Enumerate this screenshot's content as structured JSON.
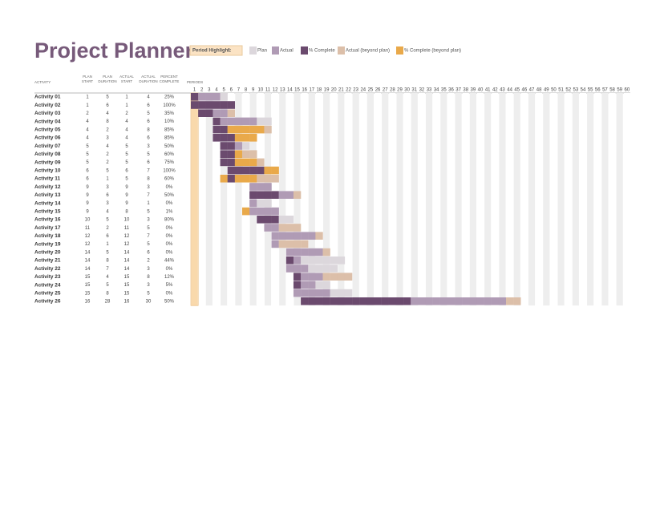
{
  "header": {
    "title": "Project Planner"
  },
  "legend": {
    "period_highlight_label": "Period Highlight:",
    "period_highlight": 1,
    "items": [
      "Plan",
      "Actual",
      "% Complete",
      "Actual (beyond plan)",
      "% Complete (beyond plan)"
    ]
  },
  "table": {
    "columns": [
      "ACTIVITY",
      "PLAN START",
      "PLAN DURATION",
      "ACTUAL START",
      "ACTUAL DURATION",
      "PERCENT COMPLETE"
    ],
    "periods_label": "PERIODS",
    "periods": [
      1,
      2,
      3,
      4,
      5,
      6,
      7,
      8,
      9,
      10,
      11,
      12,
      13,
      14,
      15,
      16,
      17,
      18,
      19,
      20,
      21,
      22,
      23,
      24,
      25,
      26,
      27,
      28,
      29,
      30,
      31,
      32,
      33,
      34,
      35,
      36,
      37,
      38,
      39,
      40,
      41,
      42,
      43,
      44,
      45,
      46,
      47,
      48,
      49,
      50,
      51,
      52,
      53,
      54,
      55,
      56,
      57,
      58,
      59,
      60
    ],
    "rows": [
      [
        "Activity 01",
        1,
        5,
        1,
        4,
        "25%"
      ],
      [
        "Activity 02",
        1,
        6,
        1,
        6,
        "100%"
      ],
      [
        "Activity 03",
        2,
        4,
        2,
        5,
        "35%"
      ],
      [
        "Activity 04",
        4,
        8,
        4,
        6,
        "10%"
      ],
      [
        "Activity 05",
        4,
        2,
        4,
        8,
        "85%"
      ],
      [
        "Activity 06",
        4,
        3,
        4,
        6,
        "85%"
      ],
      [
        "Activity 07",
        5,
        4,
        5,
        3,
        "50%"
      ],
      [
        "Activity 08",
        5,
        2,
        5,
        5,
        "60%"
      ],
      [
        "Activity 09",
        5,
        2,
        5,
        6,
        "75%"
      ],
      [
        "Activity 10",
        6,
        5,
        6,
        7,
        "100%"
      ],
      [
        "Activity 11",
        6,
        1,
        5,
        8,
        "60%"
      ],
      [
        "Activity 12",
        9,
        3,
        9,
        3,
        "0%"
      ],
      [
        "Activity 13",
        9,
        6,
        9,
        7,
        "50%"
      ],
      [
        "Activity 14",
        9,
        3,
        9,
        1,
        "0%"
      ],
      [
        "Activity 15",
        9,
        4,
        8,
        5,
        "1%"
      ],
      [
        "Activity 16",
        10,
        5,
        10,
        3,
        "80%"
      ],
      [
        "Activity 17",
        11,
        2,
        11,
        5,
        "0%"
      ],
      [
        "Activity 18",
        12,
        6,
        12,
        7,
        "0%"
      ],
      [
        "Activity 19",
        12,
        1,
        12,
        5,
        "0%"
      ],
      [
        "Activity 20",
        14,
        5,
        14,
        6,
        "0%"
      ],
      [
        "Activity 21",
        14,
        8,
        14,
        2,
        "44%"
      ],
      [
        "Activity 22",
        14,
        7,
        14,
        3,
        "0%"
      ],
      [
        "Activity 23",
        15,
        4,
        15,
        8,
        "12%"
      ],
      [
        "Activity 24",
        15,
        5,
        15,
        3,
        "5%"
      ],
      [
        "Activity 25",
        15,
        8,
        15,
        5,
        "0%"
      ],
      [
        "Activity 26",
        16,
        28,
        16,
        30,
        "50%"
      ]
    ]
  }
}
